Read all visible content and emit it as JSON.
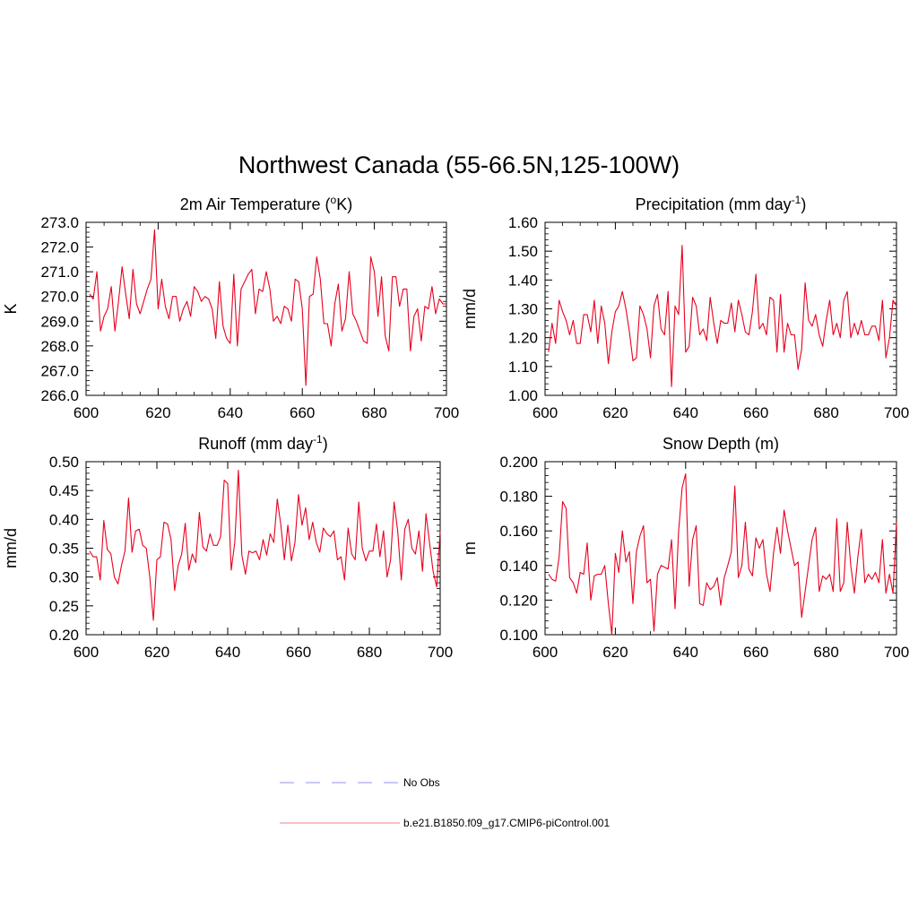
{
  "figure": {
    "title": "Northwest Canada (55-66.5N,125-100W)",
    "line_color": "#e8001e",
    "axis_color": "#000000"
  },
  "legend": {
    "entries": [
      {
        "label": "No Obs",
        "style": "dashed",
        "color": "#a6a6f2"
      },
      {
        "label": "b.e21.B1850.f09_g17.CMIP6-piControl.001",
        "style": "solid",
        "color": "#f29aa6"
      }
    ]
  },
  "chart_data": [
    {
      "type": "line",
      "title": "2m Air Temperature (",
      "title_sup": "o",
      "title_tail": "K)",
      "ylabel": "K",
      "xlim": [
        600,
        700
      ],
      "ylim": [
        266.0,
        273.0
      ],
      "xticks": [
        600,
        620,
        640,
        660,
        680,
        700
      ],
      "yticks": [
        266.0,
        267.0,
        268.0,
        269.0,
        270.0,
        271.0,
        272.0,
        273.0
      ],
      "ytick_labels": [
        "266.0",
        "267.0",
        "268.0",
        "269.0",
        "270.0",
        "271.0",
        "272.0",
        "273.0"
      ],
      "x_start": 601,
      "values": [
        270.1,
        269.9,
        271.0,
        268.6,
        269.2,
        269.5,
        270.4,
        268.6,
        269.8,
        271.2,
        270.1,
        269.1,
        271.1,
        269.7,
        269.3,
        269.8,
        270.3,
        270.7,
        272.7,
        269.5,
        270.7,
        269.6,
        269.1,
        270.0,
        270.0,
        269.0,
        269.5,
        269.8,
        269.2,
        270.4,
        270.2,
        269.8,
        270.0,
        269.9,
        269.5,
        268.3,
        270.6,
        268.8,
        268.3,
        268.1,
        270.9,
        268.0,
        270.3,
        270.6,
        270.9,
        271.1,
        269.3,
        270.3,
        270.2,
        271.0,
        270.3,
        269.0,
        269.2,
        268.9,
        269.6,
        269.5,
        269.0,
        270.7,
        270.6,
        269.5,
        266.4,
        270.0,
        270.1,
        271.6,
        270.7,
        268.9,
        268.9,
        268.0,
        269.7,
        270.5,
        268.6,
        269.1,
        271.0,
        269.3,
        269.0,
        268.6,
        268.2,
        268.1,
        271.6,
        271.0,
        269.2,
        270.8,
        268.4,
        267.8,
        270.8,
        270.8,
        269.6,
        270.3,
        270.3,
        267.8,
        269.2,
        269.5,
        268.2,
        269.6,
        269.5,
        270.4,
        269.3,
        269.9,
        269.7,
        269.7
      ]
    },
    {
      "type": "line",
      "title": "Precipitation (mm day",
      "title_sup": "-1",
      "title_tail": ")",
      "ylabel": "mm/d",
      "xlim": [
        600,
        700
      ],
      "ylim": [
        1.0,
        1.6
      ],
      "xticks": [
        600,
        620,
        640,
        660,
        680,
        700
      ],
      "yticks": [
        1.0,
        1.1,
        1.2,
        1.3,
        1.4,
        1.5,
        1.6
      ],
      "ytick_labels": [
        "1.00",
        "1.10",
        "1.20",
        "1.30",
        "1.40",
        "1.50",
        "1.60"
      ],
      "x_start": 601,
      "values": [
        1.15,
        1.25,
        1.18,
        1.33,
        1.29,
        1.26,
        1.21,
        1.26,
        1.18,
        1.18,
        1.28,
        1.28,
        1.22,
        1.33,
        1.18,
        1.31,
        1.25,
        1.11,
        1.22,
        1.29,
        1.31,
        1.36,
        1.3,
        1.22,
        1.12,
        1.13,
        1.31,
        1.28,
        1.23,
        1.13,
        1.31,
        1.35,
        1.23,
        1.21,
        1.36,
        1.03,
        1.31,
        1.28,
        1.52,
        1.15,
        1.17,
        1.34,
        1.31,
        1.21,
        1.23,
        1.19,
        1.34,
        1.25,
        1.18,
        1.26,
        1.25,
        1.25,
        1.32,
        1.22,
        1.33,
        1.28,
        1.22,
        1.21,
        1.29,
        1.42,
        1.23,
        1.25,
        1.21,
        1.34,
        1.33,
        1.15,
        1.35,
        1.15,
        1.25,
        1.21,
        1.21,
        1.09,
        1.16,
        1.39,
        1.26,
        1.24,
        1.28,
        1.21,
        1.17,
        1.26,
        1.33,
        1.21,
        1.25,
        1.2,
        1.33,
        1.36,
        1.2,
        1.25,
        1.21,
        1.26,
        1.21,
        1.21,
        1.24,
        1.24,
        1.19,
        1.33,
        1.13,
        1.2,
        1.33,
        1.31
      ]
    },
    {
      "type": "line",
      "title": "Runoff (mm day",
      "title_sup": "-1",
      "title_tail": ")",
      "ylabel": "mm/d",
      "xlim": [
        600,
        700
      ],
      "ylim": [
        0.2,
        0.5
      ],
      "xticks": [
        600,
        620,
        640,
        660,
        680,
        700
      ],
      "yticks": [
        0.2,
        0.25,
        0.3,
        0.35,
        0.4,
        0.45,
        0.5
      ],
      "ytick_labels": [
        "0.20",
        "0.25",
        "0.30",
        "0.35",
        "0.40",
        "0.45",
        "0.50"
      ],
      "x_start": 601,
      "values": [
        0.345,
        0.335,
        0.335,
        0.295,
        0.398,
        0.348,
        0.34,
        0.3,
        0.288,
        0.32,
        0.345,
        0.437,
        0.343,
        0.38,
        0.383,
        0.355,
        0.35,
        0.3,
        0.225,
        0.33,
        0.335,
        0.395,
        0.392,
        0.365,
        0.277,
        0.32,
        0.34,
        0.393,
        0.312,
        0.34,
        0.325,
        0.412,
        0.352,
        0.345,
        0.375,
        0.355,
        0.355,
        0.37,
        0.468,
        0.462,
        0.312,
        0.36,
        0.485,
        0.338,
        0.305,
        0.345,
        0.342,
        0.345,
        0.33,
        0.365,
        0.338,
        0.375,
        0.36,
        0.435,
        0.39,
        0.33,
        0.39,
        0.328,
        0.36,
        0.443,
        0.39,
        0.42,
        0.365,
        0.395,
        0.36,
        0.343,
        0.385,
        0.375,
        0.37,
        0.38,
        0.33,
        0.335,
        0.295,
        0.385,
        0.34,
        0.33,
        0.43,
        0.35,
        0.328,
        0.345,
        0.345,
        0.392,
        0.335,
        0.38,
        0.3,
        0.33,
        0.43,
        0.38,
        0.295,
        0.383,
        0.4,
        0.35,
        0.34,
        0.38,
        0.31,
        0.41,
        0.36,
        0.31,
        0.283,
        0.38
      ]
    },
    {
      "type": "line",
      "title": "Snow Depth (m)",
      "title_sup": "",
      "title_tail": "",
      "ylabel": "m",
      "xlim": [
        600,
        700
      ],
      "ylim": [
        0.1,
        0.2
      ],
      "xticks": [
        600,
        620,
        640,
        660,
        680,
        700
      ],
      "yticks": [
        0.1,
        0.12,
        0.14,
        0.16,
        0.18,
        0.2
      ],
      "ytick_labels": [
        "0.100",
        "0.120",
        "0.140",
        "0.160",
        "0.180",
        "0.200"
      ],
      "x_start": 601,
      "values": [
        0.135,
        0.132,
        0.131,
        0.145,
        0.177,
        0.173,
        0.133,
        0.13,
        0.124,
        0.136,
        0.135,
        0.153,
        0.12,
        0.134,
        0.135,
        0.135,
        0.14,
        0.118,
        0.1,
        0.147,
        0.136,
        0.16,
        0.142,
        0.148,
        0.118,
        0.148,
        0.157,
        0.163,
        0.13,
        0.132,
        0.102,
        0.135,
        0.14,
        0.139,
        0.138,
        0.155,
        0.115,
        0.16,
        0.185,
        0.193,
        0.128,
        0.155,
        0.163,
        0.118,
        0.117,
        0.13,
        0.126,
        0.128,
        0.133,
        0.117,
        0.133,
        0.14,
        0.148,
        0.186,
        0.133,
        0.14,
        0.165,
        0.138,
        0.134,
        0.156,
        0.15,
        0.155,
        0.135,
        0.125,
        0.147,
        0.162,
        0.147,
        0.172,
        0.16,
        0.15,
        0.14,
        0.142,
        0.11,
        0.125,
        0.14,
        0.155,
        0.162,
        0.125,
        0.134,
        0.132,
        0.135,
        0.125,
        0.167,
        0.125,
        0.13,
        0.165,
        0.14,
        0.124,
        0.145,
        0.161,
        0.13,
        0.135,
        0.132,
        0.136,
        0.13,
        0.155,
        0.124,
        0.135,
        0.124,
        0.165
      ]
    }
  ]
}
